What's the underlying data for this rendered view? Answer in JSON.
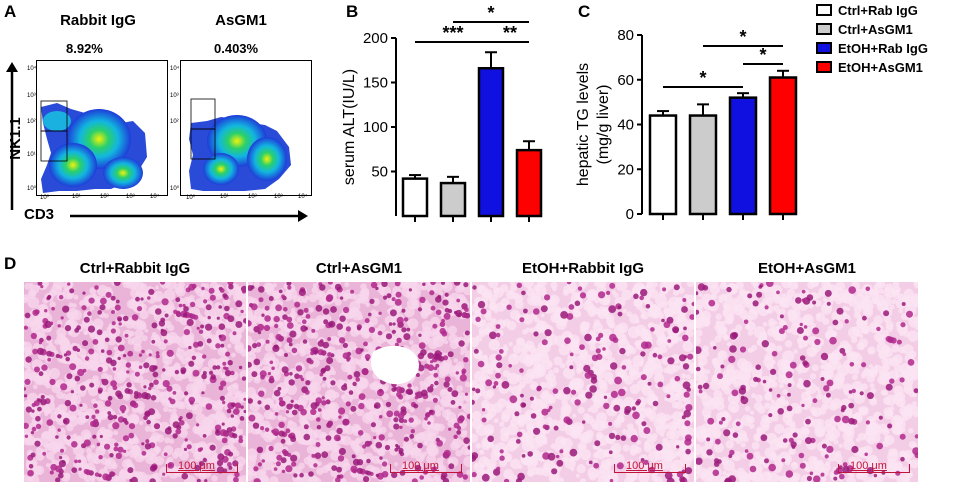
{
  "panels": {
    "a": {
      "letter": "A",
      "plots": [
        {
          "title": "Rabbit IgG",
          "percent": "8.92%"
        },
        {
          "title": "AsGM1",
          "percent": "0.403%"
        }
      ],
      "y_axis_label": "NK1.1",
      "x_axis_label": "CD3",
      "tick_labels": [
        "10⁰",
        "10¹",
        "10²",
        "10³",
        "10⁴"
      ]
    },
    "b": {
      "letter": "B"
    },
    "c": {
      "letter": "C"
    },
    "d": {
      "letter": "D",
      "images": [
        {
          "title": "Ctrl+Rabbit IgG",
          "scale": "100 μm"
        },
        {
          "title": "Ctrl+AsGM1",
          "scale": "100 μm"
        },
        {
          "title": "EtOH+Rabbit IgG",
          "scale": "100 μm"
        },
        {
          "title": "EtOH+AsGM1",
          "scale": "100 μm"
        }
      ]
    }
  },
  "legend": [
    {
      "label": "Ctrl+Rab IgG",
      "color": "#ffffff"
    },
    {
      "label": "Ctrl+AsGM1",
      "color": "#cccccc"
    },
    {
      "label": "EtOH+Rab IgG",
      "color": "#1010e0"
    },
    {
      "label": "EtOH+AsGM1",
      "color": "#ff0000"
    }
  ],
  "chart_data": [
    {
      "type": "bar",
      "title": "",
      "ylabel": "serum ALT(IU/L)",
      "categories": [
        "Ctrl+Rab IgG",
        "Ctrl+AsGM1",
        "EtOH+Rab IgG",
        "EtOH+AsGM1"
      ],
      "values": [
        42,
        37,
        166,
        74
      ],
      "errors": [
        4,
        7,
        18,
        10
      ],
      "colors": [
        "#ffffff",
        "#cccccc",
        "#1010e0",
        "#ff0000"
      ],
      "ylim": [
        0,
        200
      ],
      "yticks": [
        50,
        100,
        150,
        200
      ],
      "significance": [
        {
          "from": 0,
          "to": 2,
          "label": "***"
        },
        {
          "from": 2,
          "to": 3,
          "label": "**"
        },
        {
          "from": 1,
          "to": 3,
          "label": "*"
        }
      ]
    },
    {
      "type": "bar",
      "title": "",
      "ylabel": "hepatic TG levels (mg/g liver)",
      "categories": [
        "Ctrl+Rab IgG",
        "Ctrl+AsGM1",
        "EtOH+Rab IgG",
        "EtOH+AsGM1"
      ],
      "values": [
        44,
        44,
        52,
        61
      ],
      "errors": [
        2,
        5,
        2,
        3
      ],
      "colors": [
        "#ffffff",
        "#cccccc",
        "#1010e0",
        "#ff0000"
      ],
      "ylim": [
        0,
        80
      ],
      "yticks": [
        0,
        20,
        40,
        60,
        80
      ],
      "significance": [
        {
          "from": 0,
          "to": 2,
          "label": "*"
        },
        {
          "from": 2,
          "to": 3,
          "label": "*"
        },
        {
          "from": 1,
          "to": 3,
          "label": "*"
        }
      ]
    }
  ]
}
